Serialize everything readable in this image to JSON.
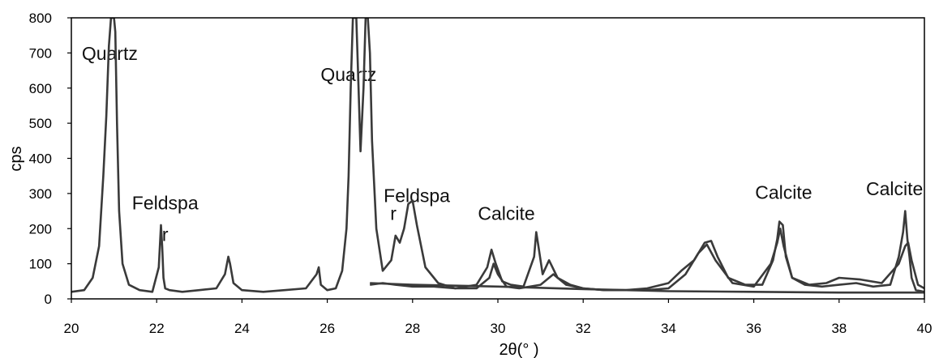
{
  "chart_data": {
    "type": "line",
    "xlabel": "2θ(°  )",
    "ylabel": "cps",
    "xlim": [
      20,
      40
    ],
    "ylim": [
      0,
      800
    ],
    "xticks": [
      20,
      22,
      24,
      26,
      28,
      30,
      32,
      34,
      36,
      38,
      40
    ],
    "yticks": [
      0,
      100,
      200,
      300,
      400,
      500,
      600,
      700,
      800
    ],
    "grid": false,
    "legend": "none",
    "line_color": "#3a3a3a",
    "annotations": [
      {
        "text": "Quartz",
        "x": 20.9,
        "y": 680
      },
      {
        "text": "Quartz",
        "x": 26.5,
        "y": 620
      },
      {
        "text": "Feldspa",
        "x": 22.2,
        "y": 255
      },
      {
        "text": "r",
        "x": 22.2,
        "y": 165
      },
      {
        "text": "Feldspa",
        "x": 28.1,
        "y": 275
      },
      {
        "text": "r",
        "x": 27.55,
        "y": 225
      },
      {
        "text": "Calcite",
        "x": 30.2,
        "y": 225
      },
      {
        "text": "Calcite",
        "x": 36.7,
        "y": 285
      },
      {
        "text": "Calcite",
        "x": 39.3,
        "y": 295
      }
    ],
    "series": [
      {
        "x": [
          20,
          20.3,
          20.5,
          20.65,
          20.75,
          20.82,
          20.88,
          20.93,
          20.97,
          21.0,
          21.03,
          21.07,
          21.12,
          21.2,
          21.35,
          21.6,
          21.9,
          22.05,
          22.1,
          22.13,
          22.16,
          22.2,
          22.3,
          22.6,
          23.0,
          23.4,
          23.6,
          23.68,
          23.72,
          23.8,
          24.0,
          24.5,
          25.0,
          25.5,
          25.75,
          25.8,
          25.85,
          26.0,
          26.2,
          26.35,
          26.45,
          26.5,
          26.55,
          26.6,
          26.64,
          26.68,
          26.72,
          26.78,
          26.85,
          26.9,
          26.95,
          27.0,
          27.05,
          27.15,
          27.3,
          27.5,
          27.6,
          27.7,
          27.8,
          27.9,
          28.0,
          28.1,
          28.3,
          28.6,
          29.0,
          29.5,
          29.75,
          29.85,
          29.95,
          30.1,
          30.3,
          30.6,
          30.85,
          30.9,
          30.95,
          31.05,
          31.2,
          31.4,
          31.7,
          32.0,
          32.5,
          33.0,
          33.5,
          34.0,
          34.3,
          34.6,
          34.85,
          35.0,
          35.15,
          35.4,
          35.8,
          36.2,
          36.45,
          36.55,
          36.6,
          36.68,
          36.75,
          36.9,
          37.2,
          37.6,
          38.0,
          38.4,
          38.8,
          39.2,
          39.4,
          39.5,
          39.55,
          39.6,
          39.65,
          39.7,
          39.8,
          40.0
        ],
        "y": [
          20,
          25,
          60,
          150,
          350,
          520,
          720,
          800,
          800,
          800,
          760,
          500,
          250,
          100,
          40,
          25,
          20,
          90,
          210,
          150,
          60,
          30,
          25,
          20,
          25,
          30,
          70,
          120,
          100,
          45,
          25,
          20,
          25,
          30,
          70,
          90,
          40,
          25,
          30,
          80,
          200,
          350,
          600,
          800,
          800,
          800,
          650,
          420,
          600,
          800,
          800,
          700,
          450,
          200,
          80,
          110,
          180,
          160,
          200,
          270,
          280,
          210,
          90,
          45,
          30,
          40,
          90,
          140,
          100,
          50,
          40,
          35,
          120,
          190,
          150,
          70,
          110,
          60,
          40,
          30,
          25,
          25,
          30,
          45,
          80,
          110,
          160,
          165,
          120,
          60,
          40,
          40,
          110,
          170,
          220,
          210,
          120,
          60,
          40,
          35,
          40,
          45,
          35,
          40,
          120,
          190,
          250,
          170,
          120,
          60,
          25,
          20
        ]
      },
      {
        "x": [
          27.0,
          27.3,
          27.6,
          28.0,
          28.5,
          29.0,
          29.5,
          29.8,
          29.9,
          30.0,
          30.2,
          30.5,
          31.0,
          31.3,
          31.6,
          32.0,
          32.5,
          33.0,
          33.5,
          34.0,
          34.4,
          34.7,
          34.9,
          35.1,
          35.5,
          36.0,
          36.4,
          36.55,
          36.62,
          36.7,
          36.9,
          37.3,
          37.7,
          38.0,
          38.5,
          39.0,
          39.4,
          39.55,
          39.62,
          39.7,
          39.85,
          40.0
        ],
        "y": [
          40,
          45,
          40,
          35,
          35,
          30,
          30,
          60,
          100,
          70,
          35,
          30,
          40,
          70,
          40,
          30,
          25,
          25,
          25,
          30,
          70,
          130,
          155,
          110,
          45,
          35,
          100,
          160,
          200,
          150,
          60,
          40,
          45,
          60,
          55,
          45,
          100,
          150,
          160,
          110,
          40,
          30
        ]
      },
      {
        "x": [
          27.0,
          28.0,
          30.0,
          32.0,
          34.0,
          36.0,
          38.0,
          40.0
        ],
        "y": [
          45,
          40,
          35,
          28,
          22,
          20,
          18,
          18
        ]
      }
    ]
  }
}
